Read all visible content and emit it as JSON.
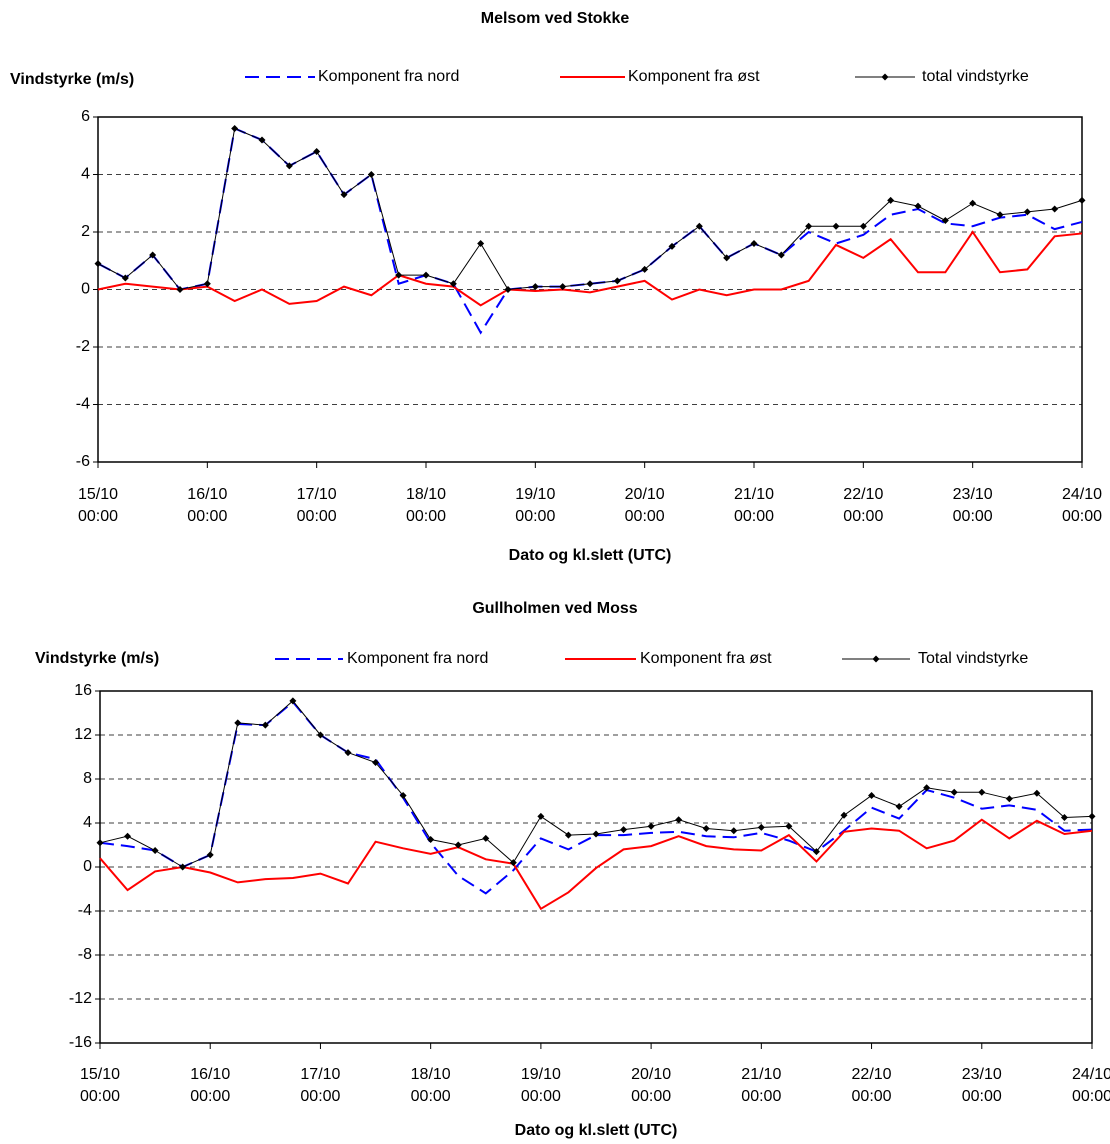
{
  "chart_data": [
    {
      "type": "line",
      "title": "Melsom ved Stokke",
      "y_label": "Vindstyrke (m/s)",
      "x_label": "Dato og kl.slett (UTC)",
      "x": [
        0,
        6,
        12,
        18,
        24,
        30,
        36,
        42,
        48,
        54,
        60,
        66,
        72,
        78,
        84,
        90,
        96,
        102,
        108,
        114,
        120,
        126,
        132,
        138,
        144,
        150,
        156,
        162,
        168,
        174,
        180,
        186,
        192,
        198,
        204,
        210,
        216
      ],
      "xlim": [
        0,
        216
      ],
      "xticks": [
        {
          "value": 0,
          "label": "15/10 00:00"
        },
        {
          "value": 24,
          "label": "16/10 00:00"
        },
        {
          "value": 48,
          "label": "17/10 00:00"
        },
        {
          "value": 72,
          "label": "18/10 00:00"
        },
        {
          "value": 96,
          "label": "19/10 00:00"
        },
        {
          "value": 120,
          "label": "20/10 00:00"
        },
        {
          "value": 144,
          "label": "21/10 00:00"
        },
        {
          "value": 168,
          "label": "22/10 00:00"
        },
        {
          "value": 192,
          "label": "23/10 00:00"
        },
        {
          "value": 216,
          "label": "24/10 00:00"
        }
      ],
      "ylim": [
        -6,
        6
      ],
      "yticks": [
        -6,
        -4,
        -2,
        0,
        2,
        4,
        6
      ],
      "grid": true,
      "series": [
        {
          "name": "Komponent fra nord",
          "color": "#0000ff",
          "values": [
            0.9,
            0.4,
            1.2,
            0,
            0.2,
            5.6,
            5.2,
            4.3,
            4.8,
            3.3,
            4.0,
            0.2,
            0.5,
            0.2,
            -1.5,
            0,
            0.1,
            0.1,
            0.2,
            0.3,
            0.7,
            1.5,
            2.2,
            1.1,
            1.6,
            1.2,
            2.0,
            1.6,
            1.9,
            2.6,
            2.8,
            2.3,
            2.2,
            2.5,
            2.6,
            2.1,
            2.35
          ]
        },
        {
          "name": "Komponent fra øst",
          "color": "#ff0000",
          "values": [
            0,
            0.2,
            0.1,
            0,
            0.1,
            -0.4,
            0,
            -0.5,
            -0.4,
            0.1,
            -0.2,
            0.5,
            0.2,
            0.1,
            -0.55,
            0,
            -0.05,
            0,
            -0.1,
            0.1,
            0.3,
            -0.35,
            0,
            -0.2,
            0,
            0,
            0.3,
            1.55,
            1.1,
            1.75,
            0.6,
            0.6,
            2.0,
            0.6,
            0.7,
            1.85,
            1.95
          ]
        },
        {
          "name": "total vindstyrke",
          "color": "#000000",
          "values": [
            0.9,
            0.4,
            1.2,
            0,
            0.2,
            5.6,
            5.2,
            4.3,
            4.8,
            3.3,
            4.0,
            0.5,
            0.5,
            0.2,
            1.6,
            0,
            0.1,
            0.1,
            0.2,
            0.3,
            0.7,
            1.5,
            2.2,
            1.1,
            1.6,
            1.2,
            2.2,
            2.2,
            2.2,
            3.1,
            2.9,
            2.4,
            3.0,
            2.6,
            2.7,
            2.8,
            3.1
          ]
        }
      ]
    },
    {
      "type": "line",
      "title": "Gullholmen ved Moss",
      "y_label": "Vindstyrke (m/s)",
      "x_label": "Dato og kl.slett (UTC)",
      "x": [
        0,
        6,
        12,
        18,
        24,
        30,
        36,
        42,
        48,
        54,
        60,
        66,
        72,
        78,
        84,
        90,
        96,
        102,
        108,
        114,
        120,
        126,
        132,
        138,
        144,
        150,
        156,
        162,
        168,
        174,
        180,
        186,
        192,
        198,
        204,
        210,
        216
      ],
      "xlim": [
        0,
        216
      ],
      "xticks": [
        {
          "value": 0,
          "label": "15/10 00:00"
        },
        {
          "value": 24,
          "label": "16/10 00:00"
        },
        {
          "value": 48,
          "label": "17/10 00:00"
        },
        {
          "value": 72,
          "label": "18/10 00:00"
        },
        {
          "value": 96,
          "label": "19/10 00:00"
        },
        {
          "value": 120,
          "label": "20/10 00:00"
        },
        {
          "value": 144,
          "label": "21/10 00:00"
        },
        {
          "value": 168,
          "label": "22/10 00:00"
        },
        {
          "value": 192,
          "label": "23/10 00:00"
        },
        {
          "value": 216,
          "label": "24/10 00:00"
        }
      ],
      "ylim": [
        -16,
        16
      ],
      "yticks": [
        -16,
        -12,
        -8,
        -4,
        0,
        4,
        8,
        12,
        16
      ],
      "grid": true,
      "series": [
        {
          "name": "Komponent fra nord",
          "color": "#0000ff",
          "values": [
            2.2,
            1.9,
            1.5,
            0,
            1.1,
            13.0,
            12.9,
            15.0,
            12.0,
            10.4,
            9.8,
            6.3,
            2.2,
            -0.8,
            -2.4,
            -0.3,
            2.6,
            1.6,
            2.9,
            2.9,
            3.1,
            3.2,
            2.8,
            2.7,
            3.1,
            2.4,
            1.4,
            3.3,
            5.4,
            4.4,
            7.0,
            6.3,
            5.3,
            5.6,
            5.2,
            3.3,
            3.4
          ]
        },
        {
          "name": "Komponent fra øst",
          "color": "#ff0000",
          "values": [
            0.8,
            -2.1,
            -0.4,
            0,
            -0.5,
            -1.4,
            -1.1,
            -1.0,
            -0.6,
            -1.5,
            2.3,
            1.7,
            1.2,
            1.8,
            0.7,
            0.3,
            -3.8,
            -2.3,
            -0.1,
            1.6,
            1.9,
            2.8,
            1.9,
            1.6,
            1.5,
            2.9,
            0.5,
            3.2,
            3.5,
            3.3,
            1.7,
            2.4,
            4.3,
            2.6,
            4.2,
            3.0,
            3.3
          ]
        },
        {
          "name": "Total vindstyrke",
          "color": "#000000",
          "values": [
            2.2,
            2.8,
            1.5,
            0,
            1.1,
            13.1,
            12.9,
            15.1,
            12.0,
            10.4,
            9.5,
            6.5,
            2.5,
            2.0,
            2.6,
            0.4,
            4.6,
            2.9,
            3.0,
            3.4,
            3.7,
            4.3,
            3.5,
            3.3,
            3.6,
            3.7,
            1.4,
            4.7,
            6.5,
            5.5,
            7.2,
            6.8,
            6.8,
            6.2,
            6.7,
            4.5,
            4.6
          ]
        }
      ]
    }
  ]
}
